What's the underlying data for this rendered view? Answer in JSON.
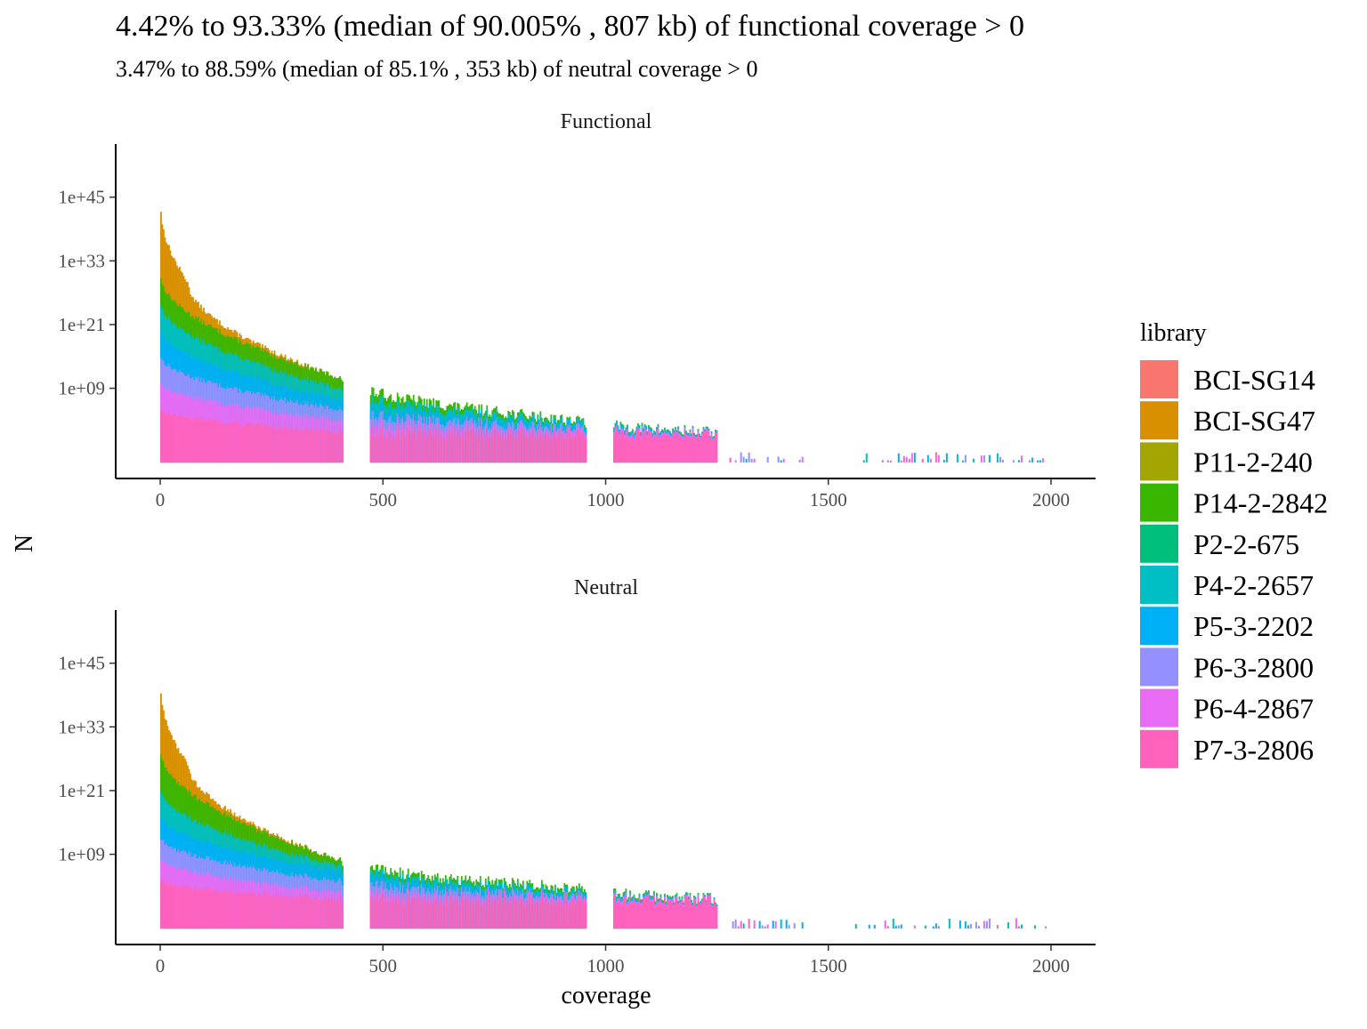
{
  "chart_data": {
    "type": "bar",
    "stacked": true,
    "title": "4.42% to 93.33% (median of 90.005% , 807 kb) of functional coverage > 0",
    "subtitle": "3.47% to 88.59% (median of 85.1% , 353 kb) of neutral coverage > 0",
    "xlabel": "coverage",
    "ylabel": "N",
    "y_scale": "log10",
    "x_ticks": [
      0,
      500,
      1000,
      1500,
      2000
    ],
    "y_tick_labels": [
      "1e+09",
      "1e+21",
      "1e+33",
      "1e+45"
    ],
    "y_tick_exponents": [
      9,
      21,
      33,
      45
    ],
    "legend": {
      "title": "library",
      "position": "right",
      "entries": [
        {
          "name": "BCI-SG14",
          "color": "#F8766D"
        },
        {
          "name": "BCI-SG47",
          "color": "#D89000"
        },
        {
          "name": "P11-2-240",
          "color": "#A3A500"
        },
        {
          "name": "P14-2-2842",
          "color": "#39B600"
        },
        {
          "name": "P2-2-675",
          "color": "#00BF7D"
        },
        {
          "name": "P4-2-2657",
          "color": "#00BFC4"
        },
        {
          "name": "P5-3-2202",
          "color": "#00B0F6"
        },
        {
          "name": "P6-3-2800",
          "color": "#9590FF"
        },
        {
          "name": "P6-4-2867",
          "color": "#E76BF3"
        },
        {
          "name": "P7-3-2806",
          "color": "#FF62BC"
        }
      ]
    },
    "panels": [
      {
        "name": "Functional",
        "x_range": [
          -100,
          2100
        ],
        "y_range_exp": [
          -8,
          55
        ],
        "max_log10_at_zero": 42.5,
        "gaps": [
          [
            410,
            470
          ],
          [
            955,
            1015
          ]
        ],
        "series_log10_at_x": [
          {
            "library": "P7-3-2806",
            "x": [
              0,
              400,
              950,
              1250
            ],
            "log10": [
              5,
              0.8,
              0.3,
              0.1
            ]
          },
          {
            "library": "P6-4-2867",
            "x": [
              0,
              400,
              950,
              1250
            ],
            "log10": [
              10,
              3,
              1,
              0.3
            ]
          },
          {
            "library": "P6-3-2800",
            "x": [
              0,
              400,
              950,
              1250
            ],
            "log10": [
              15,
              5,
              1.5,
              0.4
            ]
          },
          {
            "library": "P5-3-2202",
            "x": [
              0,
              400,
              950,
              1250
            ],
            "log10": [
              20,
              7,
              2,
              0.5
            ]
          },
          {
            "library": "P4-2-2657",
            "x": [
              0,
              400,
              950,
              1250
            ],
            "log10": [
              25,
              9,
              2.5,
              0.6
            ]
          },
          {
            "library": "P14-2-2842",
            "x": [
              0,
              400,
              950,
              1250
            ],
            "log10": [
              30,
              11,
              2.8,
              0.7
            ]
          },
          {
            "library": "BCI-SG47",
            "x": [
              0,
              60,
              400
            ],
            "log10": [
              42.5,
              29,
              11
            ]
          }
        ]
      },
      {
        "name": "Neutral",
        "x_range": [
          -100,
          2100
        ],
        "y_range_exp": [
          -8,
          55
        ],
        "max_log10_at_zero": 39.5,
        "gaps": [
          [
            410,
            470
          ],
          [
            955,
            1015
          ]
        ],
        "series_log10_at_x": [
          {
            "library": "P7-3-2806",
            "x": [
              0,
              400,
              950,
              1250
            ],
            "log10": [
              4,
              0.6,
              0.2,
              0.1
            ]
          },
          {
            "library": "P6-4-2867",
            "x": [
              0,
              400,
              950,
              1250
            ],
            "log10": [
              8,
              2,
              0.8,
              0.2
            ]
          },
          {
            "library": "P6-3-2800",
            "x": [
              0,
              400,
              950,
              1250
            ],
            "log10": [
              12,
              4,
              1.2,
              0.3
            ]
          },
          {
            "library": "P5-3-2202",
            "x": [
              0,
              400,
              950,
              1250
            ],
            "log10": [
              16,
              6,
              1.5,
              0.4
            ]
          },
          {
            "library": "P4-2-2657",
            "x": [
              0,
              400,
              950,
              1250
            ],
            "log10": [
              21,
              7,
              2,
              0.5
            ]
          },
          {
            "library": "P14-2-2842",
            "x": [
              0,
              400,
              950,
              1250
            ],
            "log10": [
              28,
              8,
              2.5,
              0.6
            ]
          },
          {
            "library": "BCI-SG47",
            "x": [
              0,
              60,
              400
            ],
            "log10": [
              39.5,
              26,
              8
            ]
          }
        ]
      }
    ]
  }
}
